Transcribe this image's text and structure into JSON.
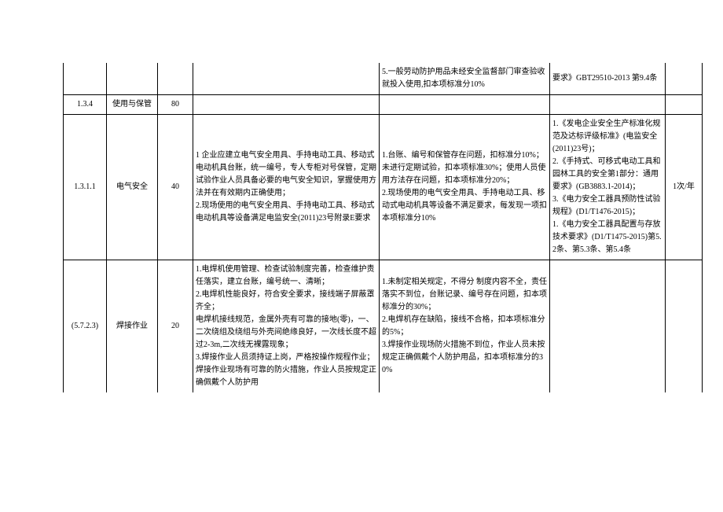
{
  "table": {
    "rows": [
      {
        "id": "r0",
        "cells": [
          {
            "cls": "c0 no-top",
            "txt": ""
          },
          {
            "cls": "c1 no-top",
            "txt": ""
          },
          {
            "cls": "c2 no-top",
            "txt": ""
          },
          {
            "cls": "c3 no-top",
            "txt": ""
          },
          {
            "cls": "c4 no-top",
            "txt": "5.一般劳动防护用品未经安全监督部门审查验收就投入使用,扣本项标准分10%"
          },
          {
            "cls": "c5 no-top",
            "txt": "要求》GBT29510-2013 第9.4条"
          },
          {
            "cls": "c6 no-top",
            "txt": ""
          }
        ]
      },
      {
        "id": "r1",
        "cells": [
          {
            "cls": "c0",
            "txt": "1.3.4"
          },
          {
            "cls": "c1",
            "txt": "使用与保管"
          },
          {
            "cls": "c2",
            "txt": "80"
          },
          {
            "cls": "c3",
            "txt": ""
          },
          {
            "cls": "c4",
            "txt": ""
          },
          {
            "cls": "c5",
            "txt": ""
          },
          {
            "cls": "c6",
            "txt": ""
          }
        ]
      },
      {
        "id": "r2",
        "cells": [
          {
            "cls": "c0",
            "txt": "1.3.1.1"
          },
          {
            "cls": "c1",
            "txt": "电气安全"
          },
          {
            "cls": "c2",
            "txt": "40"
          },
          {
            "cls": "c3",
            "txt": "1 企业应建立电气安全用具、手持电动工具、移动式电动机具台账，统一编号，专人专柜对号保管，定期试验作业人员具备必要的电气安全知识，掌握使用方法并在有效期内正确使用；\n2.现场使用的电气安全用具、手持电动工具、移动式电动机具等设备满足电监安全(2011)23号附录E要求"
          },
          {
            "cls": "c4",
            "txt": "1.台账、编号和保管存在问题，扣标准分10%；未进行定期试验，扣本项标准30%；使用人员使用方法存在问题，扣本项标准分20%；\n2.现场使用的电气安全用具、手持电动工具、移动式电动机具等设备不满足要求，每发现一项扣本项标准分10%"
          },
          {
            "cls": "c5",
            "txt": "1.《发电企业安全生产标准化规范及达标评级标准》(电监安全(2011)23号)；\n2.《手持式、可移式电动工具和园林工具的安全第1部分：通用要求》(GB3883.1-2014)；\n3.《电力安全工器具预防性试验规程》(D1/T1476-2015)；\n1.《电力安全工器具配置与存放技术要求》(D1/T1475-2015)第5.2条、第5.3条、第5.4条"
          },
          {
            "cls": "c6",
            "txt": "1次/年"
          }
        ]
      },
      {
        "id": "r3",
        "cells": [
          {
            "cls": "c0 no-bottom",
            "txt": "(5.7.2.3)"
          },
          {
            "cls": "c1 no-bottom",
            "txt": "焊接作业"
          },
          {
            "cls": "c2 no-bottom",
            "txt": "20"
          },
          {
            "cls": "c3 no-bottom",
            "txt": "1.电焊机使用管理、检查试验制度完善，检查维护责任落实，建立台账，编号统一、清晰；\n2.电焊机性能良好，符合安全要求，接线端子屏蔽罩齐全；\n电焊机接线规范，金属外壳有可靠的接地(零)，一、二次绕组及绕组与外壳间绝缘良好，一次线长度不超过2-3m,二次线无裸露现象；\n3.焊接作业人员须持证上岗，严格按操作规程作业；焊接作业现场有可靠的防火措施，作业人员按规定正确佩戴个人防护用"
          },
          {
            "cls": "c4 no-bottom",
            "txt": "1.未制定相关规定，不得分 制度内容不全，责任落实不到位，台账记录、编号存在问题，扣本项标准分的30%；\n2.电焊机存在缺陷，接线不合格，扣本项标准分的5%；\n3.焊接作业现场防火措施不到位，作业人员未按规定正确佩戴个人防护用品，扣本项标准分的30%"
          },
          {
            "cls": "c5 no-bottom",
            "txt": ""
          },
          {
            "cls": "c6 no-bottom",
            "txt": ""
          }
        ]
      }
    ]
  }
}
